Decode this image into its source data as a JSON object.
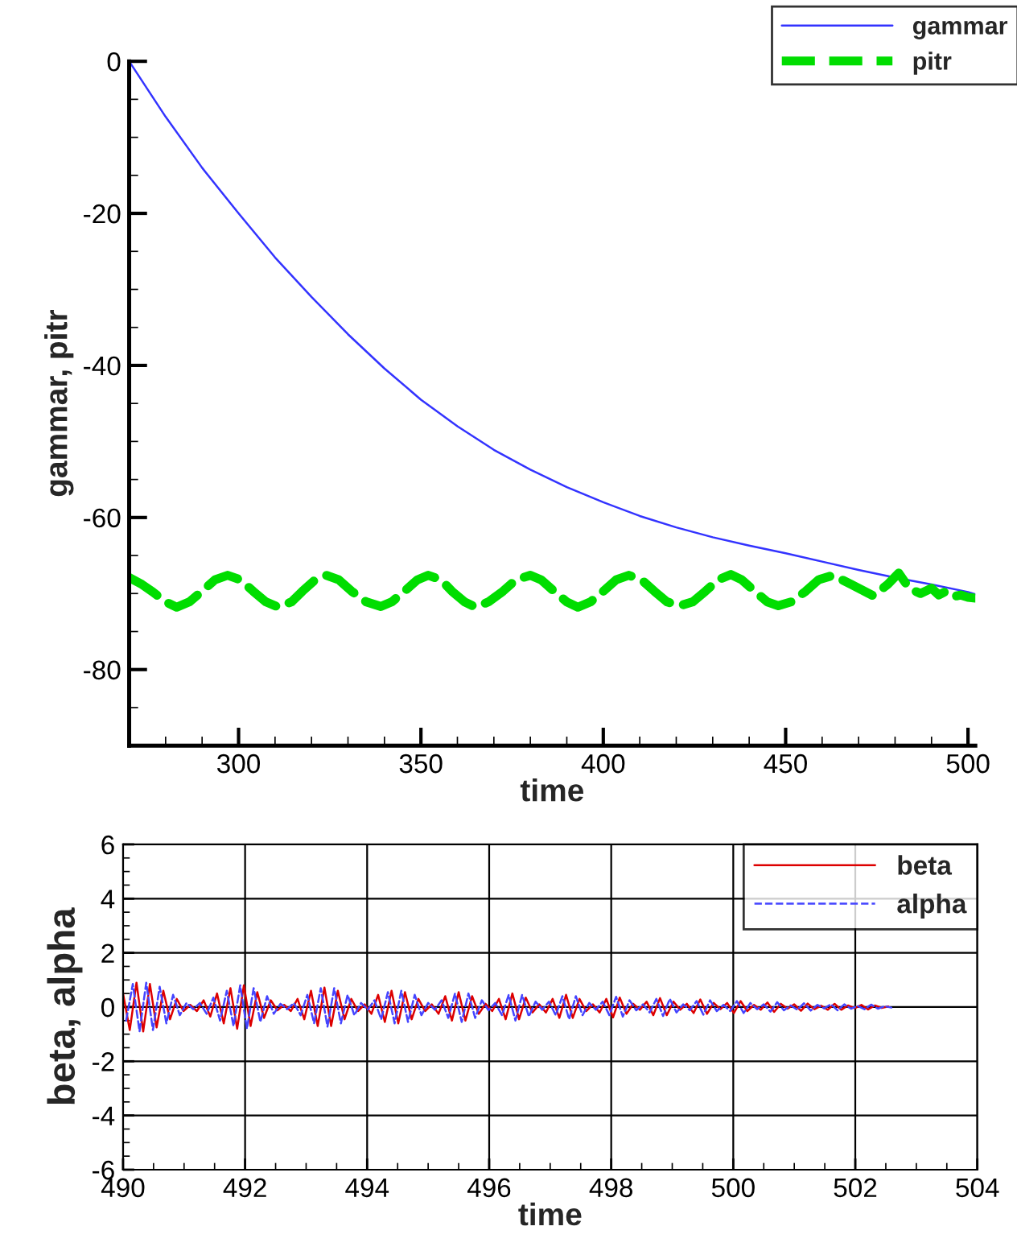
{
  "chart_data": [
    {
      "type": "line",
      "xlabel": "time",
      "ylabel": "gammar, pitr",
      "xlim": [
        270,
        502
      ],
      "ylim": [
        -90,
        0
      ],
      "xticks": [
        {
          "value": 280,
          "label": null
        },
        {
          "value": 290,
          "label": null
        },
        300,
        {
          "value": 310,
          "label": null
        },
        {
          "value": 320,
          "label": null
        },
        {
          "value": 330,
          "label": null
        },
        {
          "value": 340,
          "label": null
        },
        350,
        {
          "value": 360,
          "label": null
        },
        {
          "value": 370,
          "label": null
        },
        {
          "value": 380,
          "label": null
        },
        {
          "value": 390,
          "label": null
        },
        400,
        {
          "value": 410,
          "label": null
        },
        {
          "value": 420,
          "label": null
        },
        {
          "value": 430,
          "label": null
        },
        {
          "value": 440,
          "label": null
        },
        450,
        {
          "value": 460,
          "label": null
        },
        {
          "value": 470,
          "label": null
        },
        {
          "value": 480,
          "label": null
        },
        {
          "value": 490,
          "label": null
        },
        500
      ],
      "yticks": [
        {
          "value": -85,
          "label": null
        },
        -80,
        {
          "value": -75,
          "label": null
        },
        {
          "value": -70,
          "label": null
        },
        {
          "value": -65,
          "label": null
        },
        -60,
        {
          "value": -55,
          "label": null
        },
        {
          "value": -50,
          "label": null
        },
        {
          "value": -45,
          "label": null
        },
        -40,
        {
          "value": -35,
          "label": null
        },
        {
          "value": -30,
          "label": null
        },
        {
          "value": -25,
          "label": null
        },
        -20,
        {
          "value": -15,
          "label": null
        },
        {
          "value": -10,
          "label": null
        },
        {
          "value": -5,
          "label": null
        },
        0
      ],
      "grid": false,
      "legend": "top right",
      "series": [
        {
          "name": "gammar",
          "color": "#3333ff",
          "line_style": "solid",
          "x": [
            270,
            280,
            290,
            300,
            310,
            320,
            330,
            340,
            350,
            360,
            370,
            380,
            390,
            400,
            410,
            420,
            430,
            440,
            450,
            460,
            470,
            480,
            490,
            500,
            502
          ],
          "values": [
            0,
            -7.3,
            -14,
            -20,
            -25.8,
            -31,
            -35.9,
            -40.4,
            -44.5,
            -48,
            -51.1,
            -53.7,
            -56,
            -58,
            -59.8,
            -61.3,
            -62.6,
            -63.7,
            -64.7,
            -65.8,
            -66.9,
            -67.9,
            -68.8,
            -69.8,
            -70.1
          ]
        },
        {
          "name": "pitr",
          "color": "#00dd00",
          "line_style": "dashed",
          "x": [
            270,
            273.5,
            276.5,
            280,
            283,
            286.5,
            290,
            293.5,
            297,
            300.5,
            304,
            307.5,
            311,
            314.5,
            317.5,
            321,
            324,
            327.5,
            331,
            335,
            339,
            342,
            345.5,
            349,
            352,
            355.5,
            358.5,
            362,
            365,
            368.5,
            372.5,
            376,
            380,
            383,
            386.5,
            390,
            393,
            396.5,
            400,
            403.5,
            407,
            410.5,
            414,
            417.5,
            421,
            424.5,
            428,
            431.5,
            435,
            438,
            441.5,
            445,
            448,
            451.5,
            455.5,
            459,
            463,
            468,
            474,
            478,
            481,
            484,
            487,
            490,
            492,
            494,
            496,
            498,
            500,
            502
          ],
          "values": [
            -67.9,
            -68.8,
            -69.8,
            -71.1,
            -71.8,
            -71.1,
            -69.7,
            -68.2,
            -67.6,
            -68.2,
            -69.7,
            -71.1,
            -71.8,
            -71.1,
            -69.7,
            -68.2,
            -67.6,
            -68.2,
            -69.7,
            -71.1,
            -71.7,
            -71.1,
            -69.7,
            -68.2,
            -67.6,
            -68.2,
            -69.7,
            -71.1,
            -71.8,
            -71.1,
            -69.7,
            -68.2,
            -67.6,
            -68.2,
            -69.7,
            -71.1,
            -71.8,
            -71.1,
            -69.7,
            -68.2,
            -67.6,
            -68.2,
            -69.7,
            -71.1,
            -71.6,
            -71.1,
            -69.7,
            -68.2,
            -67.5,
            -68.2,
            -69.7,
            -71.1,
            -71.6,
            -71.1,
            -69.7,
            -68.2,
            -67.6,
            -68.8,
            -70.3,
            -68.8,
            -67.3,
            -69.4,
            -70,
            -69.3,
            -70.2,
            -69.7,
            -70.4,
            -70.2,
            -70.5,
            -70.6
          ]
        }
      ]
    },
    {
      "type": "line",
      "xlabel": "time",
      "ylabel": "beta, alpha",
      "xlim": [
        490,
        504
      ],
      "ylim": [
        -6,
        6
      ],
      "xticks": [
        490,
        {
          "value": 490.5,
          "label": null
        },
        {
          "value": 491,
          "label": null
        },
        {
          "value": 491.5,
          "label": null
        },
        492,
        {
          "value": 492.5,
          "label": null
        },
        {
          "value": 493,
          "label": null
        },
        {
          "value": 493.5,
          "label": null
        },
        494,
        {
          "value": 494.5,
          "label": null
        },
        {
          "value": 495,
          "label": null
        },
        {
          "value": 495.5,
          "label": null
        },
        496,
        {
          "value": 496.5,
          "label": null
        },
        {
          "value": 497,
          "label": null
        },
        {
          "value": 497.5,
          "label": null
        },
        498,
        {
          "value": 498.5,
          "label": null
        },
        {
          "value": 499,
          "label": null
        },
        {
          "value": 499.5,
          "label": null
        },
        500,
        {
          "value": 500.5,
          "label": null
        },
        {
          "value": 501,
          "label": null
        },
        {
          "value": 501.5,
          "label": null
        },
        502,
        {
          "value": 502.5,
          "label": null
        },
        {
          "value": 503,
          "label": null
        },
        {
          "value": 503.5,
          "label": null
        },
        504
      ],
      "yticks": [
        -6,
        {
          "value": -5.5,
          "label": null
        },
        {
          "value": -5,
          "label": null
        },
        {
          "value": -4.5,
          "label": null
        },
        -4,
        {
          "value": -3.5,
          "label": null
        },
        {
          "value": -3,
          "label": null
        },
        {
          "value": -2.5,
          "label": null
        },
        -2,
        {
          "value": -1.5,
          "label": null
        },
        {
          "value": -1,
          "label": null
        },
        {
          "value": -0.5,
          "label": null
        },
        0,
        {
          "value": 0.5,
          "label": null
        },
        {
          "value": 1,
          "label": null
        },
        {
          "value": 1.5,
          "label": null
        },
        2,
        {
          "value": 2.5,
          "label": null
        },
        {
          "value": 3,
          "label": null
        },
        {
          "value": 3.5,
          "label": null
        },
        4,
        {
          "value": 4.5,
          "label": null
        },
        {
          "value": 5,
          "label": null
        },
        {
          "value": 5.5,
          "label": null
        },
        6
      ],
      "grid": true,
      "legend": "top right",
      "series": [
        {
          "name": "beta",
          "color": "#dd0000",
          "line_style": "solid",
          "x": [
            490,
            490.11,
            490.22,
            490.33,
            490.44,
            490.55,
            490.66,
            490.77,
            490.88,
            490.99,
            491.1,
            491.21,
            491.32,
            491.43,
            491.54,
            491.65,
            491.76,
            491.87,
            491.98,
            492.09,
            492.2,
            492.31,
            492.42,
            492.53,
            492.64,
            492.75,
            492.86,
            492.97,
            493.08,
            493.19,
            493.3,
            493.41,
            493.52,
            493.63,
            493.74,
            493.85,
            493.96,
            494.07,
            494.18,
            494.29,
            494.4,
            494.51,
            494.62,
            494.73,
            494.84,
            494.95,
            495.06,
            495.17,
            495.28,
            495.39,
            495.5,
            495.61,
            495.72,
            495.83,
            495.94,
            496.05,
            496.16,
            496.27,
            496.38,
            496.49,
            496.6,
            496.71,
            496.82,
            496.93,
            497.04,
            497.15,
            497.26,
            497.37,
            497.48,
            497.59,
            497.7,
            497.81,
            497.92,
            498.03,
            498.14,
            498.25,
            498.36,
            498.47,
            498.58,
            498.69,
            498.8,
            498.91,
            499.02,
            499.13,
            499.24,
            499.35,
            499.46,
            499.57,
            499.68,
            499.79,
            499.9,
            500.01,
            500.12,
            500.23,
            500.34,
            500.45,
            500.56,
            500.67,
            500.78,
            500.89,
            501,
            501.11,
            501.22,
            501.33,
            501.44,
            501.55,
            501.66,
            501.77,
            501.88,
            501.99,
            502.1,
            502.21,
            502.32,
            502.43,
            502.54
          ],
          "values": [
            0.5,
            -0.85,
            0.9,
            -0.9,
            0.85,
            -0.75,
            0.6,
            -0.45,
            0.3,
            -0.15,
            0.08,
            -0.15,
            0.25,
            -0.35,
            0.5,
            -0.6,
            0.7,
            -0.8,
            0.8,
            -0.7,
            0.55,
            -0.4,
            0.25,
            -0.12,
            0.08,
            -0.15,
            0.3,
            -0.45,
            0.6,
            -0.7,
            0.72,
            -0.7,
            0.6,
            -0.45,
            0.3,
            -0.15,
            0.1,
            -0.25,
            0.45,
            -0.55,
            0.6,
            -0.6,
            0.55,
            -0.45,
            0.3,
            -0.15,
            0.1,
            -0.25,
            0.4,
            -0.5,
            0.55,
            -0.5,
            0.4,
            -0.25,
            0.12,
            -0.15,
            0.3,
            -0.45,
            0.5,
            -0.45,
            0.35,
            -0.2,
            0.1,
            -0.2,
            0.3,
            -0.4,
            0.45,
            -0.4,
            0.3,
            -0.15,
            0.1,
            -0.2,
            0.3,
            -0.38,
            0.35,
            -0.25,
            0.12,
            -0.1,
            0.2,
            -0.3,
            0.33,
            -0.3,
            0.2,
            -0.1,
            0.12,
            -0.22,
            0.28,
            -0.25,
            0.15,
            -0.08,
            0.15,
            -0.22,
            0.22,
            -0.15,
            0.08,
            -0.1,
            0.17,
            -0.18,
            0.12,
            -0.06,
            0.1,
            -0.14,
            0.13,
            -0.08,
            0.05,
            -0.1,
            0.12,
            -0.1,
            0.06,
            -0.04,
            0.08,
            -0.09,
            0.06,
            -0.03,
            0.02
          ]
        },
        {
          "name": "alpha",
          "color": "#4444ff",
          "line_style": "dashed",
          "x": [
            490.05,
            490.16,
            490.27,
            490.38,
            490.49,
            490.6,
            490.71,
            490.82,
            490.93,
            491.04,
            491.15,
            491.26,
            491.37,
            491.48,
            491.59,
            491.7,
            491.81,
            491.92,
            492.03,
            492.14,
            492.25,
            492.36,
            492.47,
            492.58,
            492.69,
            492.8,
            492.91,
            493.02,
            493.13,
            493.24,
            493.35,
            493.46,
            493.57,
            493.68,
            493.79,
            493.9,
            494.01,
            494.12,
            494.23,
            494.34,
            494.45,
            494.56,
            494.67,
            494.78,
            494.89,
            495,
            495.11,
            495.22,
            495.33,
            495.44,
            495.55,
            495.66,
            495.77,
            495.88,
            495.99,
            496.1,
            496.21,
            496.32,
            496.43,
            496.54,
            496.65,
            496.76,
            496.87,
            496.98,
            497.09,
            497.2,
            497.31,
            497.42,
            497.53,
            497.64,
            497.75,
            497.86,
            497.97,
            498.08,
            498.19,
            498.3,
            498.41,
            498.52,
            498.63,
            498.74,
            498.85,
            498.96,
            499.07,
            499.18,
            499.29,
            499.4,
            499.51,
            499.62,
            499.73,
            499.84,
            499.95,
            500.06,
            500.17,
            500.28,
            500.39,
            500.5,
            500.61,
            500.72,
            500.83,
            500.94,
            501.05,
            501.16,
            501.27,
            501.38,
            501.49,
            501.6,
            501.71,
            501.82,
            501.93,
            502.04,
            502.15,
            502.26,
            502.37,
            502.48,
            502.59
          ],
          "values": [
            -0.5,
            0.85,
            -0.9,
            0.9,
            -0.85,
            0.75,
            -0.6,
            0.45,
            -0.3,
            0.15,
            -0.08,
            0.15,
            -0.25,
            0.35,
            -0.5,
            0.6,
            -0.7,
            0.8,
            -0.8,
            0.7,
            -0.55,
            0.4,
            -0.25,
            0.12,
            -0.08,
            0.15,
            -0.3,
            0.45,
            -0.6,
            0.7,
            -0.72,
            0.7,
            -0.6,
            0.45,
            -0.3,
            0.15,
            -0.1,
            0.25,
            -0.45,
            0.55,
            -0.6,
            0.6,
            -0.55,
            0.45,
            -0.3,
            0.15,
            -0.1,
            0.25,
            -0.4,
            0.5,
            -0.55,
            0.5,
            -0.4,
            0.25,
            -0.12,
            0.15,
            -0.3,
            0.45,
            -0.5,
            0.45,
            -0.35,
            0.2,
            -0.1,
            0.2,
            -0.3,
            0.4,
            -0.45,
            0.4,
            -0.3,
            0.15,
            -0.1,
            0.2,
            -0.3,
            0.38,
            -0.35,
            0.25,
            -0.12,
            0.1,
            -0.2,
            0.3,
            -0.33,
            0.3,
            -0.2,
            0.1,
            -0.12,
            0.22,
            -0.28,
            0.25,
            -0.15,
            0.08,
            -0.15,
            0.22,
            -0.22,
            0.15,
            -0.08,
            0.1,
            -0.17,
            0.18,
            -0.12,
            0.06,
            -0.1,
            0.14,
            -0.13,
            0.08,
            -0.05,
            0.1,
            -0.12,
            0.1,
            -0.06,
            0.04,
            -0.08,
            0.09,
            -0.06,
            0.03,
            -0.02
          ]
        }
      ]
    }
  ]
}
